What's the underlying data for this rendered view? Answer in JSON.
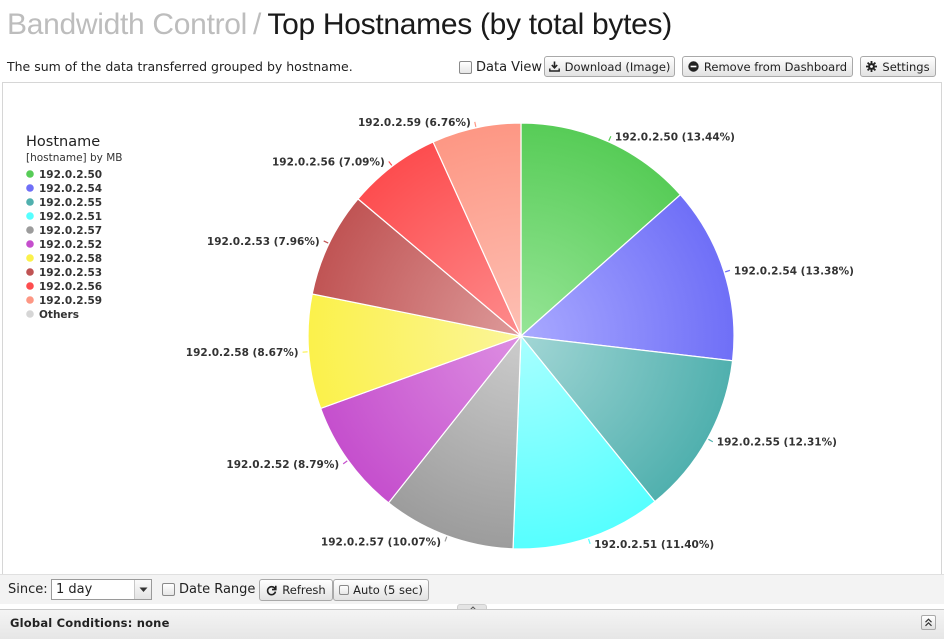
{
  "header": {
    "breadcrumb": "Bandwidth Control",
    "separator": "/",
    "title": "Top Hostnames (by total bytes)"
  },
  "description": "The sum of the data transferred grouped by hostname.",
  "toolbar": {
    "data_view_label": "Data View",
    "data_view_checked": false,
    "download_label": "Download (Image)",
    "remove_label": "Remove from Dashboard",
    "settings_label": "Settings"
  },
  "chart_data": {
    "type": "pie",
    "legend_title": "Hostname",
    "legend_subtitle": "[hostname] by MB",
    "legend_position": "top-left",
    "slices": [
      {
        "label": "192.0.2.50",
        "percent": 13.44,
        "color": "#57cc57",
        "highlight": "#96e596"
      },
      {
        "label": "192.0.2.54",
        "percent": 13.38,
        "color": "#6f6ff7",
        "highlight": "#a9a9ff"
      },
      {
        "label": "192.0.2.55",
        "percent": 12.31,
        "color": "#50b0ae",
        "highlight": "#a2d6d5"
      },
      {
        "label": "192.0.2.51",
        "percent": 11.4,
        "color": "#56ffff",
        "highlight": "#a8ffff"
      },
      {
        "label": "192.0.2.57",
        "percent": 10.07,
        "color": "#9c9c9c",
        "highlight": "#cccccc"
      },
      {
        "label": "192.0.2.52",
        "percent": 8.79,
        "color": "#c54fcd",
        "highlight": "#dd8ee2"
      },
      {
        "label": "192.0.2.58",
        "percent": 8.67,
        "color": "#fbf14b",
        "highlight": "#fbf59a"
      },
      {
        "label": "192.0.2.53",
        "percent": 7.96,
        "color": "#c05454",
        "highlight": "#dd9a9a"
      },
      {
        "label": "192.0.2.56",
        "percent": 7.09,
        "color": "#fd4d4f",
        "highlight": "#fd8c8d"
      },
      {
        "label": "192.0.2.59",
        "percent": 6.76,
        "color": "#fd9784",
        "highlight": "#fdc0b4"
      }
    ],
    "legend_extra": [
      {
        "label": "Others",
        "color": "#d6d6d6"
      }
    ]
  },
  "footer": {
    "since_label": "Since:",
    "since_value": "1 day",
    "date_range_label": "Date Range",
    "refresh_label": "Refresh",
    "auto_label": "Auto (5 sec)"
  },
  "global_conditions": "Global Conditions: none"
}
